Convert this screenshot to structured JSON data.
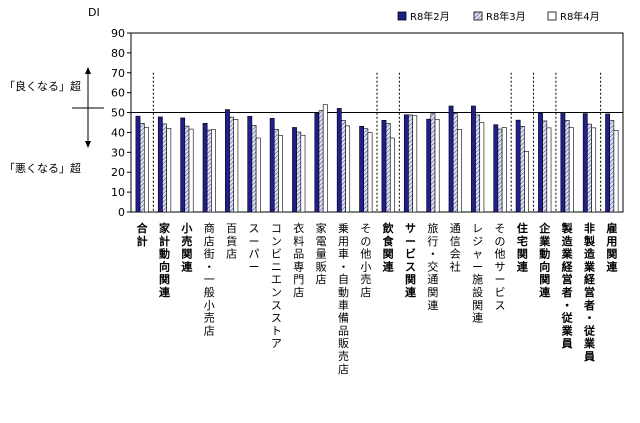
{
  "side": {
    "good_label": "「良くなる」超",
    "bad_label": "「悪くなる」超"
  },
  "chart_data": {
    "type": "bar",
    "ylabel": "DI",
    "ylim": [
      0,
      90
    ],
    "yticks": [
      0,
      10,
      20,
      30,
      40,
      50,
      60,
      70,
      80,
      90
    ],
    "grid": false,
    "legend_position": "top-right",
    "series": [
      {
        "name": "R8年2月",
        "color": "#1f1f8f",
        "pattern": "solid",
        "values": [
          48.2,
          47.8,
          47.3,
          44.6,
          51.5,
          48.1,
          47.1,
          42.5,
          49.6,
          52.1,
          43.1,
          46.1,
          48.9,
          46.7,
          53.3,
          53.3,
          43.9,
          46.2,
          49.6,
          50.0,
          49.5,
          49.3
        ]
      },
      {
        "name": "R8年3月",
        "color": "#c8cbe6",
        "pattern": "hatch",
        "values": [
          44.6,
          44.3,
          43.2,
          41.2,
          47.7,
          43.6,
          41.6,
          40.2,
          51.0,
          46.0,
          41.9,
          44.6,
          48.8,
          49.4,
          49.5,
          48.8,
          41.7,
          43.1,
          45.8,
          46.1,
          44.2,
          46.0
        ]
      },
      {
        "name": "R8年4月",
        "color": "#ffffff",
        "pattern": "open",
        "values": [
          42.5,
          42.1,
          41.7,
          41.5,
          46.6,
          37.2,
          38.4,
          38.6,
          54.0,
          43.3,
          39.9,
          37.2,
          48.4,
          46.6,
          41.5,
          45.0,
          42.5,
          30.5,
          42.3,
          42.4,
          42.3,
          41.0
        ]
      }
    ],
    "categories": [
      {
        "label": "合計",
        "bold": true
      },
      {
        "label": "家計動向関連",
        "bold": true
      },
      {
        "label": "小売関連",
        "bold": true
      },
      {
        "label": "商店街・一般小売店",
        "bold": false
      },
      {
        "label": "百貨店",
        "bold": false
      },
      {
        "label": "スーパー",
        "bold": false
      },
      {
        "label": "コンビニエンスストア",
        "bold": false
      },
      {
        "label": "衣料品専門店",
        "bold": false
      },
      {
        "label": "家電量販店",
        "bold": false
      },
      {
        "label": "乗用車・自動車備品販売店",
        "bold": false
      },
      {
        "label": "その他小売店",
        "bold": false
      },
      {
        "label": "飲食関連",
        "bold": true
      },
      {
        "label": "サービス関連",
        "bold": true
      },
      {
        "label": "旅行・交通関連",
        "bold": false
      },
      {
        "label": "通信会社",
        "bold": false
      },
      {
        "label": "レジャー施設関連",
        "bold": false
      },
      {
        "label": "その他サービス",
        "bold": false
      },
      {
        "label": "住宅関連",
        "bold": true
      },
      {
        "label": "企業動向関連",
        "bold": true
      },
      {
        "label": "製造業経営者・従業員",
        "bold": true
      },
      {
        "label": "非製造業経営者・従業員",
        "bold": true
      },
      {
        "label": "雇用関連",
        "bold": true
      }
    ],
    "separators_after": [
      0,
      10,
      11,
      16,
      17,
      18,
      20
    ],
    "reference_line": 50
  }
}
